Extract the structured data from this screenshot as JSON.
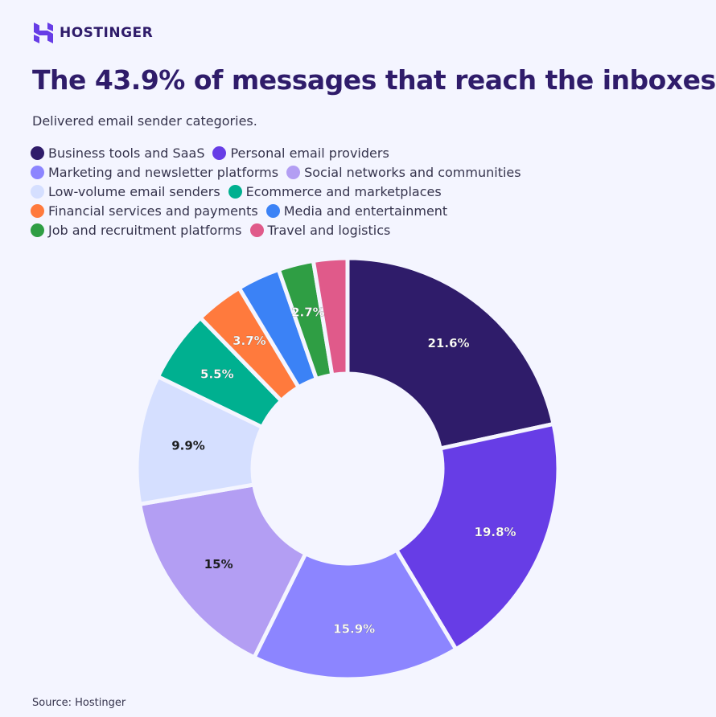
{
  "brand": "HOSTINGER",
  "chart_data": {
    "type": "pie",
    "title": "The 43.9% of messages that reach the inboxes",
    "subtitle": "Delivered email sender categories.",
    "source": "Source: Hostinger",
    "categories": [
      "Business tools and SaaS",
      "Personal email providers",
      "Marketing and newsletter platforms",
      "Social networks and communities",
      "Low-volume email senders",
      "Ecommerce and marketplaces",
      "Financial services and payments",
      "Media and entertainment",
      "Job and recruitment platforms",
      "Travel and logistics"
    ],
    "values": [
      21.6,
      19.8,
      15.9,
      15,
      9.9,
      5.5,
      3.7,
      3.3,
      2.7,
      2.6
    ],
    "value_labels": [
      "21.6%",
      "19.8%",
      "15.9%",
      "15%",
      "9.9%",
      "5.5%",
      "3.7%",
      null,
      "2.7%",
      null
    ],
    "colors": [
      "#2f1c6a",
      "#673de6",
      "#8c85ff",
      "#b39ef3",
      "#d5dfff",
      "#00b090",
      "#ff7a3d",
      "#3b82f6",
      "#2f9e44",
      "#e05a8a"
    ],
    "donut": true
  }
}
